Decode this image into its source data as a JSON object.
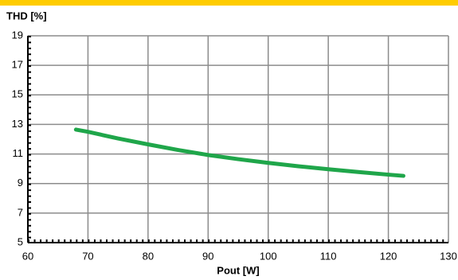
{
  "chart_data": {
    "type": "line",
    "y_label": "THD [%]",
    "x_label": "Pout [W]",
    "x": [
      68,
      70,
      75,
      80,
      85,
      90,
      95,
      100,
      105,
      110,
      115,
      120,
      122.5
    ],
    "series": [
      {
        "name": "THD",
        "color": "#1fa64a",
        "values": [
          12.65,
          12.5,
          12.05,
          11.65,
          11.27,
          10.93,
          10.65,
          10.4,
          10.17,
          9.97,
          9.78,
          9.6,
          9.52
        ]
      }
    ],
    "xlim": [
      60,
      130
    ],
    "xticks": [
      60,
      70,
      80,
      90,
      100,
      110,
      120,
      130
    ],
    "ylim": [
      5,
      19
    ],
    "yticks": [
      5,
      7,
      9,
      11,
      13,
      15,
      17,
      19
    ],
    "grid": true
  }
}
